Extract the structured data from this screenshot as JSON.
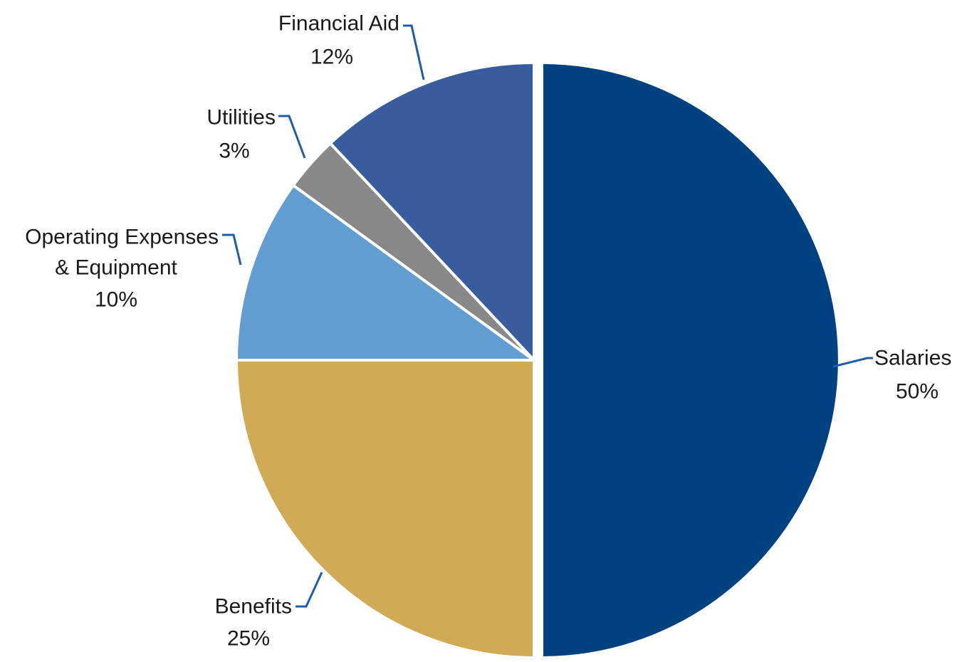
{
  "chart_data": {
    "type": "pie",
    "title": "",
    "legend": "none",
    "slices": [
      {
        "label": "Salaries",
        "value": 50,
        "display": "50%",
        "color": "#00427f"
      },
      {
        "label": "Benefits",
        "value": 25,
        "display": "25%",
        "color": "#d1aa55"
      },
      {
        "label": "Operating Expenses & Equipment",
        "label_lines": [
          "Operating Expenses",
          "& Equipment"
        ],
        "value": 10,
        "display": "10%",
        "color": "#629dd2"
      },
      {
        "label": "Utilities",
        "value": 3,
        "display": "3%",
        "color": "#888888"
      },
      {
        "label": "Financial Aid",
        "value": 12,
        "display": "12%",
        "color": "#385d9f"
      }
    ],
    "leader_color": "#1f5da8"
  }
}
